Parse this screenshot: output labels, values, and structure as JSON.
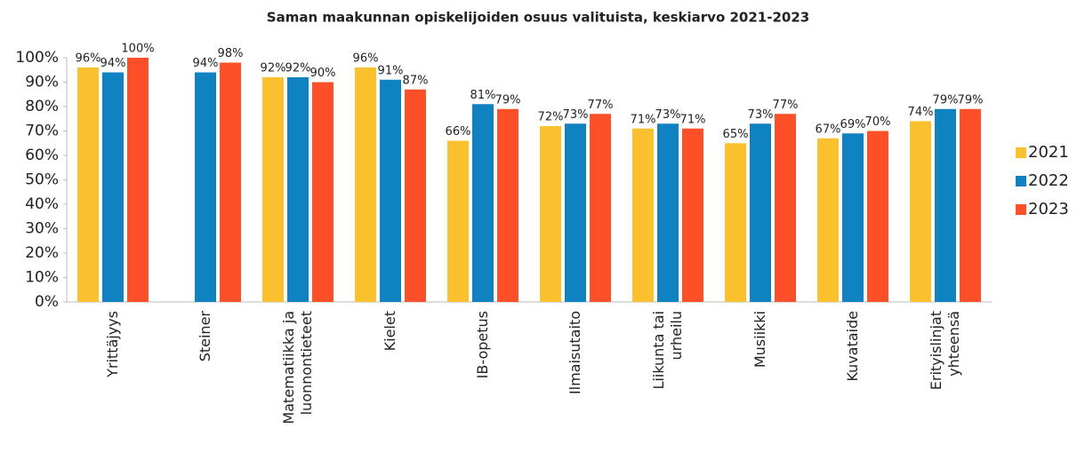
{
  "chart_data": {
    "type": "bar",
    "title": "Saman maakunnan opiskelijoiden osuus valituista, keskiarvo 2021-2023",
    "categories": [
      "Yrittäjyys",
      "Steiner",
      "Matematiikka ja\nluonnontieteet",
      "Kielet",
      "IB-opetus",
      "Ilmaisutaito",
      "Liikunta tai\nurheilu",
      "Musiikki",
      "Kuvataide",
      "Erityislinjat\nyhteensä"
    ],
    "series": [
      {
        "name": "2021",
        "color": "#fbc02d",
        "values": [
          96,
          null,
          92,
          96,
          66,
          72,
          71,
          65,
          67,
          74
        ],
        "value_labels": [
          "96%",
          null,
          "92%",
          "96%",
          "66%",
          "72%",
          "71%",
          "65%",
          "67%",
          "74%"
        ]
      },
      {
        "name": "2022",
        "color": "#0f83c1",
        "values": [
          94,
          94,
          92,
          91,
          81,
          73,
          73,
          73,
          69,
          79
        ],
        "value_labels": [
          "94%",
          "94%",
          "92%",
          "91%",
          "81%",
          "73%",
          "73%",
          "73%",
          "69%",
          "79%"
        ]
      },
      {
        "name": "2023",
        "color": "#fd5028",
        "values": [
          100,
          98,
          90,
          87,
          79,
          77,
          71,
          77,
          70,
          79
        ],
        "value_labels": [
          "100%",
          "98%",
          "90%",
          "87%",
          "79%",
          "77%",
          "71%",
          "77%",
          "70%",
          "79%"
        ]
      }
    ],
    "ylim": [
      0,
      100
    ],
    "yticks": [
      {
        "value": 0,
        "label": "0%"
      },
      {
        "value": 10,
        "label": "10%"
      },
      {
        "value": 20,
        "label": "20%"
      },
      {
        "value": 30,
        "label": "30%"
      },
      {
        "value": 40,
        "label": "40%"
      },
      {
        "value": 50,
        "label": "50%"
      },
      {
        "value": 60,
        "label": "60%"
      },
      {
        "value": 70,
        "label": "70%"
      },
      {
        "value": 80,
        "label": "80%"
      },
      {
        "value": 90,
        "label": "90%"
      },
      {
        "value": 100,
        "label": "100%"
      }
    ],
    "grid": false,
    "legend": "right"
  }
}
